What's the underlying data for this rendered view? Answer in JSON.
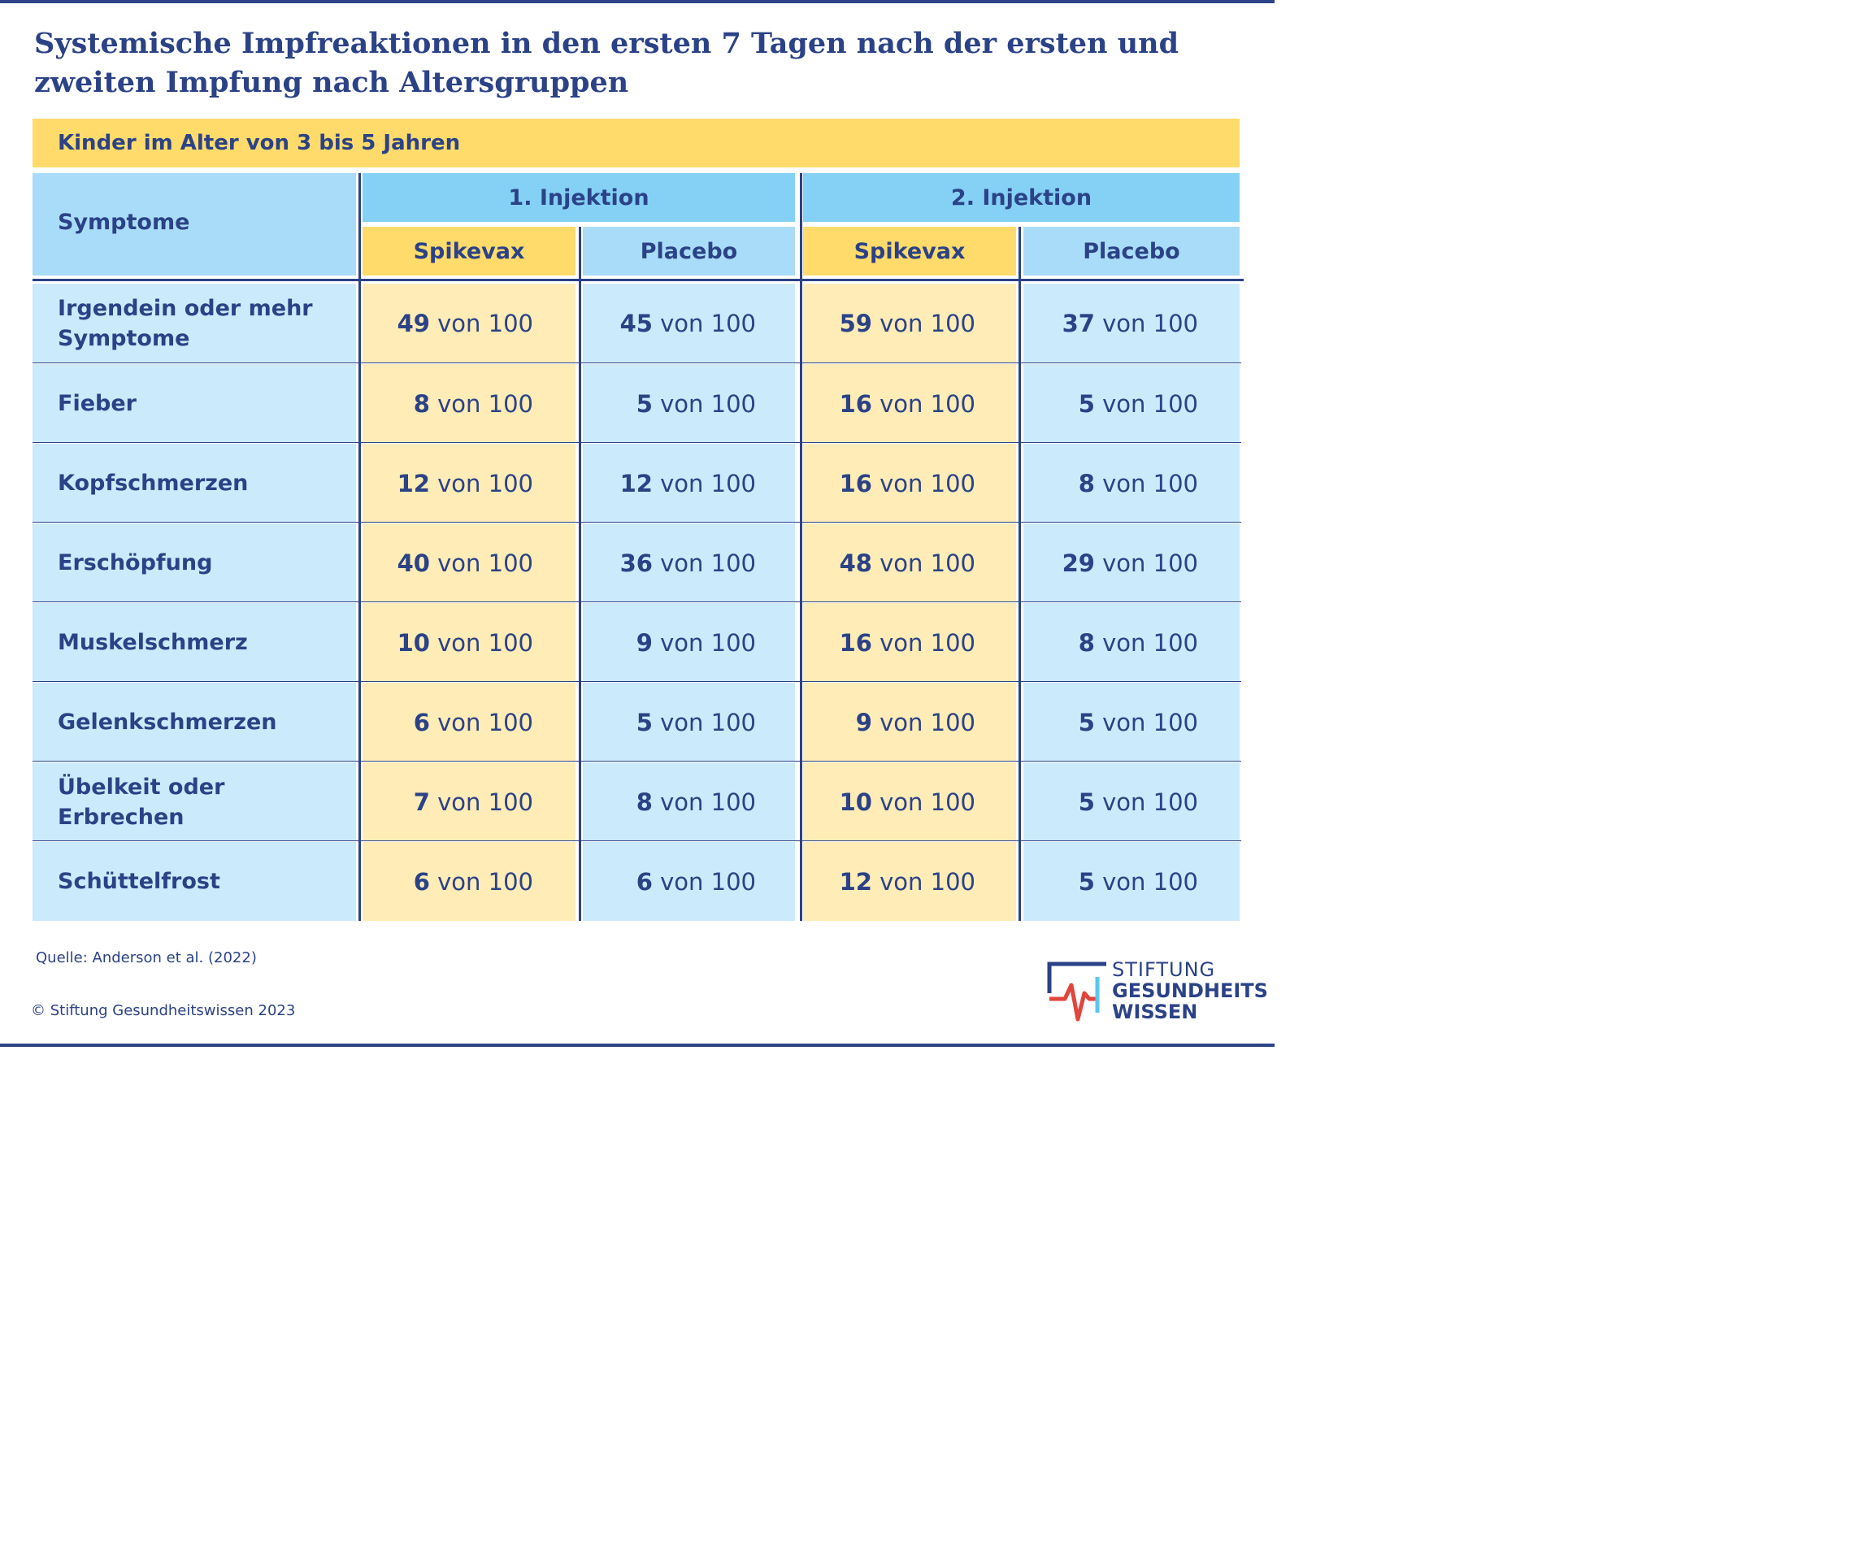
{
  "title": {
    "line1": "Systemische Impfreaktionen in den ersten 7 Tagen nach der ersten und",
    "line2": "zweiten Impfung nach Altersgruppen"
  },
  "group_label": "Kinder im Alter von 3 bis 5 Jahren",
  "header": {
    "symptoms": "Symptome",
    "injection1": "1. Injektion",
    "injection2": "2. Injektion",
    "spikevax": "Spikevax",
    "placebo": "Placebo"
  },
  "unit_text": " von 100",
  "rows": [
    {
      "symptom": "Irgendein oder mehr Symptome",
      "values": [
        "49",
        "45",
        "59",
        "37"
      ]
    },
    {
      "symptom": "Fieber",
      "values": [
        "8",
        "5",
        "16",
        "5"
      ]
    },
    {
      "symptom": "Kopfschmerzen",
      "values": [
        "12",
        "12",
        "16",
        "8"
      ]
    },
    {
      "symptom": "Erschöpfung",
      "values": [
        "40",
        "36",
        "48",
        "29"
      ]
    },
    {
      "symptom": "Muskelschmerz",
      "values": [
        "10",
        "9",
        "16",
        "8"
      ]
    },
    {
      "symptom": "Gelenkschmerzen",
      "values": [
        "6",
        "5",
        "9",
        "5"
      ]
    },
    {
      "symptom": "Übelkeit oder Erbrechen",
      "values": [
        "7",
        "8",
        "10",
        "5"
      ]
    },
    {
      "symptom": "Schüttelfrost",
      "values": [
        "6",
        "6",
        "12",
        "5"
      ]
    }
  ],
  "source": "Quelle: Anderson et al. (2022)",
  "copyright": "© Stiftung Gesundheitswissen 2023",
  "logo": {
    "line1": "STIFTUNG",
    "line2": "GESUNDHEITS",
    "line3": "WISSEN"
  },
  "colors": {
    "navy": "#2b4287",
    "yellow": "#ffdb6b",
    "light_yellow": "#ffecb6",
    "light_blue": "#cbeafb",
    "mid_blue": "#85d1f5",
    "logo_red": "#e2453c",
    "logo_cyan": "#5bc5f2"
  }
}
